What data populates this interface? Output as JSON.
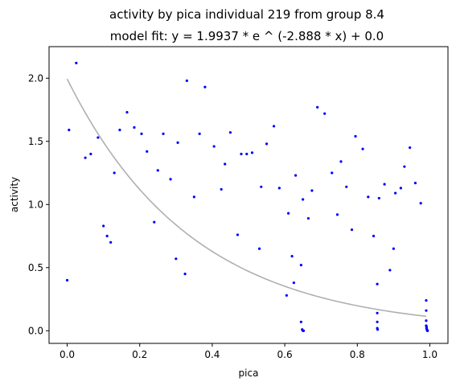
{
  "chart_data": {
    "type": "scatter",
    "title": "activity by pica individual 219 from group 8.4",
    "subtitle": "model fit: y = 1.9937 * e ^ (-2.888 * x) + 0.0",
    "xlabel": "pica",
    "ylabel": "activity",
    "xlim": [
      -0.05,
      1.05
    ],
    "ylim": [
      -0.1,
      2.25
    ],
    "x_ticks": [
      "0.0",
      "0.2",
      "0.4",
      "0.6",
      "0.8",
      "1.0"
    ],
    "y_ticks": [
      "0.0",
      "0.5",
      "1.0",
      "1.5",
      "2.0"
    ],
    "grid": false,
    "colors": {
      "points": "#0000ff",
      "fit": "#b0b0b0"
    },
    "fit": {
      "a": 1.9937,
      "b": -2.888,
      "c": 0.0,
      "x_range": [
        0.0,
        0.99
      ]
    },
    "points": [
      [
        0.0,
        0.4
      ],
      [
        0.005,
        1.59
      ],
      [
        0.025,
        2.12
      ],
      [
        0.05,
        1.37
      ],
      [
        0.065,
        1.4
      ],
      [
        0.085,
        1.53
      ],
      [
        0.1,
        0.83
      ],
      [
        0.11,
        0.75
      ],
      [
        0.12,
        0.7
      ],
      [
        0.13,
        1.25
      ],
      [
        0.145,
        1.59
      ],
      [
        0.165,
        1.73
      ],
      [
        0.185,
        1.61
      ],
      [
        0.205,
        1.56
      ],
      [
        0.22,
        1.42
      ],
      [
        0.24,
        0.86
      ],
      [
        0.25,
        1.27
      ],
      [
        0.265,
        1.56
      ],
      [
        0.285,
        1.2
      ],
      [
        0.3,
        0.57
      ],
      [
        0.305,
        1.49
      ],
      [
        0.325,
        0.45
      ],
      [
        0.33,
        1.98
      ],
      [
        0.35,
        1.06
      ],
      [
        0.365,
        1.56
      ],
      [
        0.38,
        1.93
      ],
      [
        0.405,
        1.46
      ],
      [
        0.425,
        1.12
      ],
      [
        0.435,
        1.32
      ],
      [
        0.45,
        1.57
      ],
      [
        0.47,
        0.76
      ],
      [
        0.48,
        1.4
      ],
      [
        0.495,
        1.4
      ],
      [
        0.51,
        1.41
      ],
      [
        0.53,
        0.65
      ],
      [
        0.535,
        1.14
      ],
      [
        0.55,
        1.48
      ],
      [
        0.57,
        1.62
      ],
      [
        0.585,
        1.13
      ],
      [
        0.605,
        0.28
      ],
      [
        0.61,
        0.93
      ],
      [
        0.62,
        0.59
      ],
      [
        0.625,
        0.38
      ],
      [
        0.63,
        1.23
      ],
      [
        0.645,
        0.52
      ],
      [
        0.65,
        1.04
      ],
      [
        0.665,
        0.89
      ],
      [
        0.675,
        1.11
      ],
      [
        0.69,
        1.77
      ],
      [
        0.71,
        1.72
      ],
      [
        0.73,
        1.25
      ],
      [
        0.745,
        0.92
      ],
      [
        0.755,
        1.34
      ],
      [
        0.77,
        1.14
      ],
      [
        0.785,
        0.8
      ],
      [
        0.795,
        1.54
      ],
      [
        0.815,
        1.44
      ],
      [
        0.83,
        1.06
      ],
      [
        0.845,
        0.75
      ],
      [
        0.855,
        0.37
      ],
      [
        0.86,
        1.05
      ],
      [
        0.875,
        1.16
      ],
      [
        0.89,
        0.48
      ],
      [
        0.9,
        0.65
      ],
      [
        0.905,
        1.09
      ],
      [
        0.92,
        1.13
      ],
      [
        0.93,
        1.3
      ],
      [
        0.945,
        1.45
      ],
      [
        0.96,
        1.17
      ],
      [
        0.975,
        1.01
      ],
      [
        0.645,
        0.07
      ],
      [
        0.648,
        0.01
      ],
      [
        0.65,
        0.0
      ],
      [
        0.652,
        0.0
      ],
      [
        0.855,
        0.14
      ],
      [
        0.855,
        0.07
      ],
      [
        0.855,
        0.02
      ],
      [
        0.856,
        0.01
      ],
      [
        0.99,
        0.24
      ],
      [
        0.99,
        0.16
      ],
      [
        0.99,
        0.08
      ],
      [
        0.99,
        0.04
      ],
      [
        0.991,
        0.03
      ],
      [
        0.991,
        0.02
      ],
      [
        0.992,
        0.01
      ],
      [
        0.992,
        0.01
      ],
      [
        0.993,
        0.0
      ],
      [
        0.994,
        0.0
      ]
    ]
  }
}
